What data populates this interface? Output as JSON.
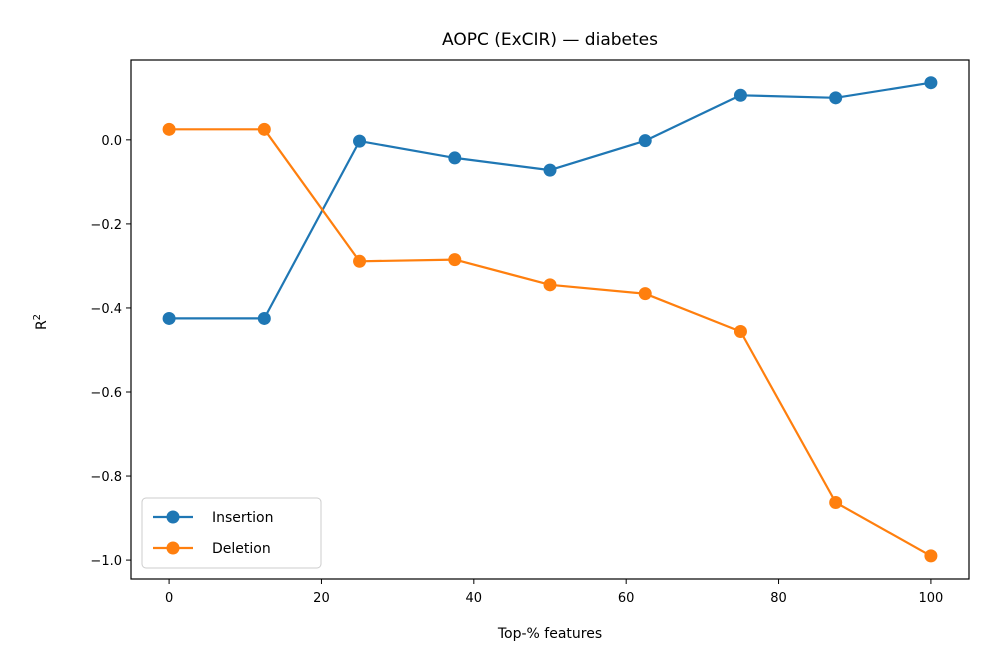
{
  "chart_data": {
    "type": "line",
    "title": "AOPC (ExCIR) — diabetes",
    "xlabel": "Top-% features",
    "ylabel_base": "R",
    "ylabel_sup": "2",
    "x": [
      0,
      12.5,
      25,
      37.5,
      50,
      62.5,
      75,
      87.5,
      100
    ],
    "xlim": [
      -5,
      105
    ],
    "ylim": [
      -1.045,
      0.19
    ],
    "xticks": [
      0,
      20,
      40,
      60,
      80,
      100
    ],
    "xtick_labels": [
      "0",
      "20",
      "40",
      "60",
      "80",
      "100"
    ],
    "yticks": [
      0.0,
      -0.2,
      -0.4,
      -0.6,
      -0.8,
      -1.0
    ],
    "ytick_labels": [
      "0.0",
      "−0.2",
      "−0.4",
      "−0.6",
      "−0.8",
      "−1.0"
    ],
    "grid": false,
    "legend_position": "lower-left",
    "series": [
      {
        "name": "Insertion",
        "color": "#1f77b4",
        "marker": "circle",
        "values": [
          -0.425,
          -0.425,
          -0.003,
          -0.043,
          -0.072,
          -0.002,
          0.106,
          0.1,
          0.136
        ]
      },
      {
        "name": "Deletion",
        "color": "#ff7f0e",
        "marker": "circle",
        "values": [
          0.025,
          0.025,
          -0.289,
          -0.285,
          -0.345,
          -0.366,
          -0.456,
          -0.863,
          -0.99
        ]
      }
    ]
  }
}
